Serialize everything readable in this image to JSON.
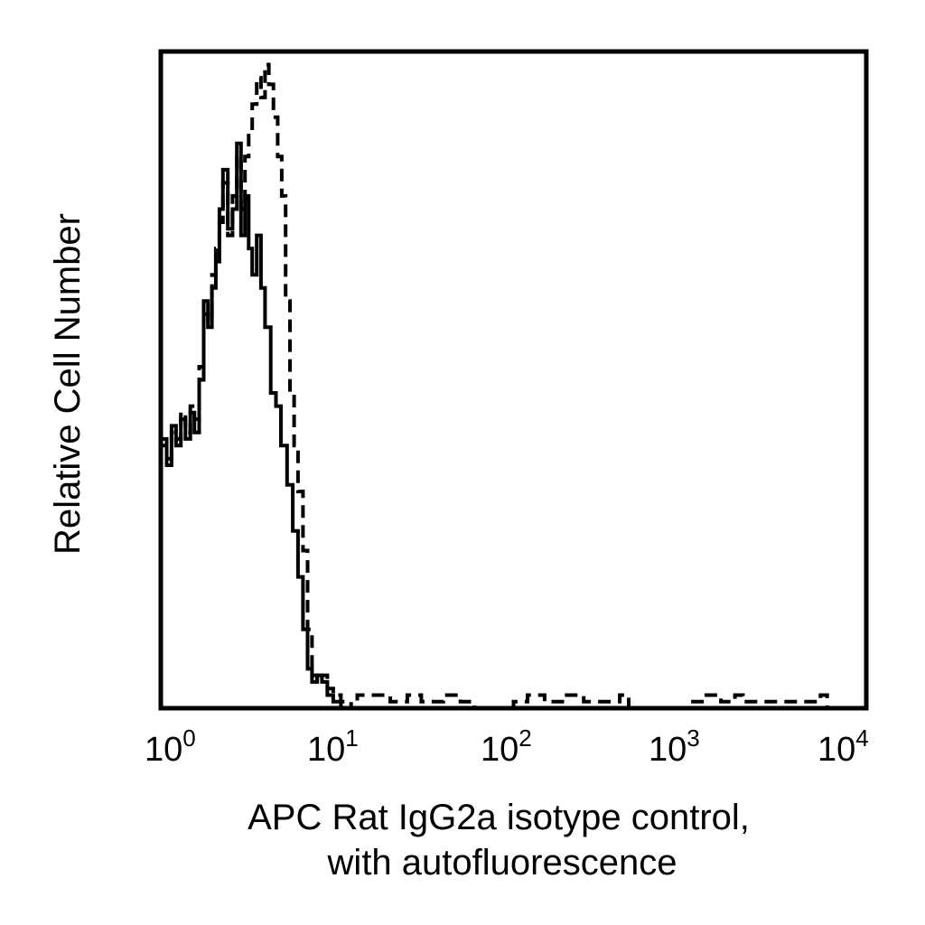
{
  "chart_data": {
    "type": "line",
    "title": "",
    "xlabel_lines": [
      "APC Rat IgG2a isotype control,",
      "with autofluorescence"
    ],
    "ylabel": "Relative Cell Number",
    "x_scale": "log",
    "xlim": [
      1,
      10000
    ],
    "ylim": [
      0,
      100
    ],
    "x_ticks": [
      {
        "base": "10",
        "exp": "0",
        "value": 1
      },
      {
        "base": "10",
        "exp": "1",
        "value": 10
      },
      {
        "base": "10",
        "exp": "2",
        "value": 100
      },
      {
        "base": "10",
        "exp": "3",
        "value": 1000
      },
      {
        "base": "10",
        "exp": "4",
        "value": 10000
      }
    ],
    "y_ticks_shown": false,
    "grid": false,
    "series": [
      {
        "style": "solid",
        "color": "#000000",
        "points": [
          [
            1.0,
            41
          ],
          [
            1.08,
            37
          ],
          [
            1.15,
            43
          ],
          [
            1.22,
            40
          ],
          [
            1.3,
            44
          ],
          [
            1.38,
            41
          ],
          [
            1.47,
            45
          ],
          [
            1.55,
            42
          ],
          [
            1.65,
            50
          ],
          [
            1.75,
            62
          ],
          [
            1.85,
            58
          ],
          [
            1.95,
            64
          ],
          [
            2.05,
            68
          ],
          [
            2.15,
            76
          ],
          [
            2.25,
            82
          ],
          [
            2.4,
            73
          ],
          [
            2.55,
            76
          ],
          [
            2.7,
            86
          ],
          [
            2.85,
            72
          ],
          [
            3.0,
            78
          ],
          [
            3.15,
            70
          ],
          [
            3.3,
            66
          ],
          [
            3.5,
            72
          ],
          [
            3.7,
            64
          ],
          [
            3.9,
            58
          ],
          [
            4.2,
            48
          ],
          [
            4.5,
            46
          ],
          [
            4.8,
            40
          ],
          [
            5.2,
            34
          ],
          [
            5.6,
            27
          ],
          [
            6.0,
            20
          ],
          [
            6.4,
            12
          ],
          [
            6.8,
            6
          ],
          [
            7.2,
            4
          ],
          [
            7.7,
            5
          ],
          [
            8.2,
            4
          ],
          [
            8.8,
            2
          ],
          [
            9.5,
            1
          ],
          [
            10.5,
            0
          ],
          [
            12.0,
            0
          ],
          [
            20.0,
            0
          ],
          [
            50.0,
            0
          ],
          [
            100.0,
            0
          ],
          [
            1000,
            0
          ],
          [
            10000,
            0
          ]
        ]
      },
      {
        "style": "dashed",
        "color": "#000000",
        "points": [
          [
            1.0,
            40
          ],
          [
            1.08,
            38
          ],
          [
            1.15,
            42
          ],
          [
            1.22,
            41
          ],
          [
            1.3,
            45
          ],
          [
            1.38,
            42
          ],
          [
            1.47,
            46
          ],
          [
            1.55,
            44
          ],
          [
            1.65,
            52
          ],
          [
            1.75,
            60
          ],
          [
            1.85,
            59
          ],
          [
            1.95,
            66
          ],
          [
            2.05,
            70
          ],
          [
            2.15,
            74
          ],
          [
            2.25,
            80
          ],
          [
            2.4,
            72
          ],
          [
            2.55,
            78
          ],
          [
            2.7,
            84
          ],
          [
            2.85,
            76
          ],
          [
            3.0,
            84
          ],
          [
            3.15,
            88
          ],
          [
            3.3,
            92
          ],
          [
            3.5,
            96
          ],
          [
            3.7,
            93
          ],
          [
            3.9,
            98
          ],
          [
            4.1,
            95
          ],
          [
            4.35,
            90
          ],
          [
            4.6,
            84
          ],
          [
            4.85,
            78
          ],
          [
            5.1,
            62
          ],
          [
            5.4,
            48
          ],
          [
            5.7,
            40
          ],
          [
            6.0,
            33
          ],
          [
            6.4,
            24
          ],
          [
            6.8,
            12
          ],
          [
            7.2,
            5
          ],
          [
            7.7,
            4
          ],
          [
            8.2,
            5
          ],
          [
            8.8,
            3
          ],
          [
            9.5,
            2
          ],
          [
            10.5,
            1
          ],
          [
            12.0,
            0
          ],
          [
            13.0,
            2
          ],
          [
            15.0,
            2
          ],
          [
            18.0,
            2
          ],
          [
            20.0,
            1
          ],
          [
            25.0,
            2
          ],
          [
            30.0,
            1
          ],
          [
            40.0,
            2
          ],
          [
            50.0,
            1
          ],
          [
            60.0,
            0
          ],
          [
            100.0,
            1
          ],
          [
            120.0,
            2
          ],
          [
            150.0,
            1
          ],
          [
            200.0,
            2
          ],
          [
            250.0,
            1
          ],
          [
            400.0,
            2
          ],
          [
            450.0,
            0
          ],
          [
            1000,
            1
          ],
          [
            1200,
            2
          ],
          [
            1500,
            1
          ],
          [
            1800,
            2
          ],
          [
            2000,
            1
          ],
          [
            5500,
            2
          ],
          [
            6000,
            0
          ],
          [
            10000,
            0
          ]
        ]
      }
    ]
  }
}
